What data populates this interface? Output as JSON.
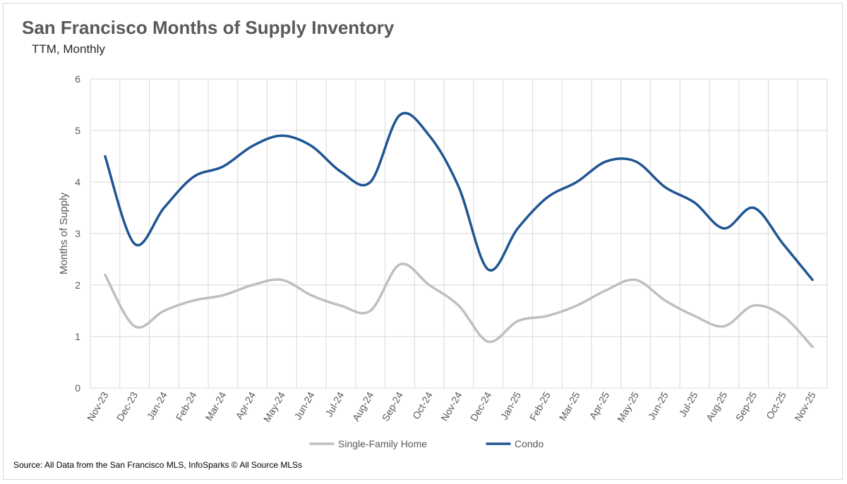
{
  "title": "San Francisco Months of Supply Inventory",
  "subtitle": "TTM, Monthly",
  "source": "Source: All Data from the San Francisco MLS, InfoSparks © All Source MLSs",
  "chart_data": {
    "type": "line",
    "ylabel": "Months of Supply",
    "xlabel": "",
    "ylim": [
      0,
      6
    ],
    "yticks": [
      0,
      1,
      2,
      3,
      4,
      5,
      6
    ],
    "grid": true,
    "legend_position": "bottom",
    "categories": [
      "Nov-23",
      "Dec-23",
      "Jan-24",
      "Feb-24",
      "Mar-24",
      "Apr-24",
      "May-24",
      "Jun-24",
      "Jul-24",
      "Aug-24",
      "Sep-24",
      "Oct-24",
      "Nov-24",
      "Dec-24",
      "Jan-25",
      "Feb-25",
      "Mar-25",
      "Apr-25",
      "May-25",
      "Jun-25",
      "Jul-25",
      "Aug-25",
      "Sep-25",
      "Oct-25",
      "Nov-25"
    ],
    "series": [
      {
        "name": "Single-Family Home",
        "color": "#bfbfbf",
        "values": [
          2.2,
          1.2,
          1.5,
          1.7,
          1.8,
          2.0,
          2.1,
          1.8,
          1.6,
          1.5,
          2.4,
          2.0,
          1.6,
          0.9,
          1.3,
          1.4,
          1.6,
          1.9,
          2.1,
          1.7,
          1.4,
          1.2,
          1.6,
          1.4,
          0.8
        ]
      },
      {
        "name": "Condo",
        "color": "#1f5592",
        "values": [
          4.5,
          2.8,
          3.5,
          4.1,
          4.3,
          4.7,
          4.9,
          4.7,
          4.2,
          4.0,
          5.3,
          4.9,
          3.9,
          2.3,
          3.1,
          3.7,
          4.0,
          4.4,
          4.4,
          3.9,
          3.6,
          3.1,
          3.5,
          2.8,
          2.1
        ]
      }
    ]
  }
}
